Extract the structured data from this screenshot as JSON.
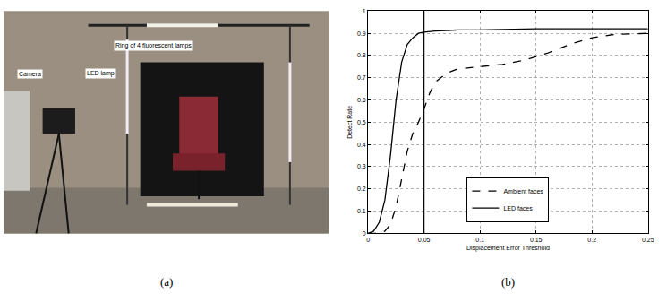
{
  "figure": {
    "captions": [
      "(a)",
      "(b)"
    ]
  },
  "photo": {
    "labels": [
      "Ring of 4 fluorescent lamps",
      "Camera",
      "LED lamp"
    ]
  },
  "chart_data": {
    "type": "line",
    "x_label": "Displacement Error Threshold",
    "y_label": "Detect Rate",
    "xlim": [
      0,
      0.25
    ],
    "xticks": [
      0,
      0.05,
      0.1,
      0.15,
      0.2,
      0.25
    ],
    "ylim": [
      0,
      1
    ],
    "yticks": [
      0,
      0.1,
      0.2,
      0.3,
      0.4,
      0.5,
      0.6,
      0.7,
      0.8,
      0.9,
      1
    ],
    "grid": true,
    "legend": "lower center",
    "vertical_line": 0.05,
    "series": [
      {
        "name": "Ambient faces",
        "color": "#000000",
        "line_style": "dash",
        "x": [
          0,
          0.01,
          0.015,
          0.02,
          0.025,
          0.03,
          0.035,
          0.04,
          0.045,
          0.05,
          0.055,
          0.06,
          0.07,
          0.08,
          0.1,
          0.12,
          0.14,
          0.16,
          0.18,
          0.2,
          0.22,
          0.25
        ],
        "values": [
          0,
          0,
          0.01,
          0.04,
          0.12,
          0.25,
          0.37,
          0.45,
          0.5,
          0.56,
          0.63,
          0.68,
          0.72,
          0.74,
          0.75,
          0.76,
          0.78,
          0.81,
          0.85,
          0.88,
          0.895,
          0.9
        ]
      },
      {
        "name": "LED faces",
        "color": "#000000",
        "line_style": "solid",
        "x": [
          0,
          0.005,
          0.01,
          0.015,
          0.02,
          0.025,
          0.03,
          0.035,
          0.04,
          0.045,
          0.05,
          0.06,
          0.08,
          0.1,
          0.15,
          0.2,
          0.25
        ],
        "values": [
          0,
          0.01,
          0.05,
          0.15,
          0.35,
          0.6,
          0.77,
          0.85,
          0.88,
          0.9,
          0.905,
          0.91,
          0.915,
          0.915,
          0.92,
          0.92,
          0.92
        ]
      }
    ]
  }
}
